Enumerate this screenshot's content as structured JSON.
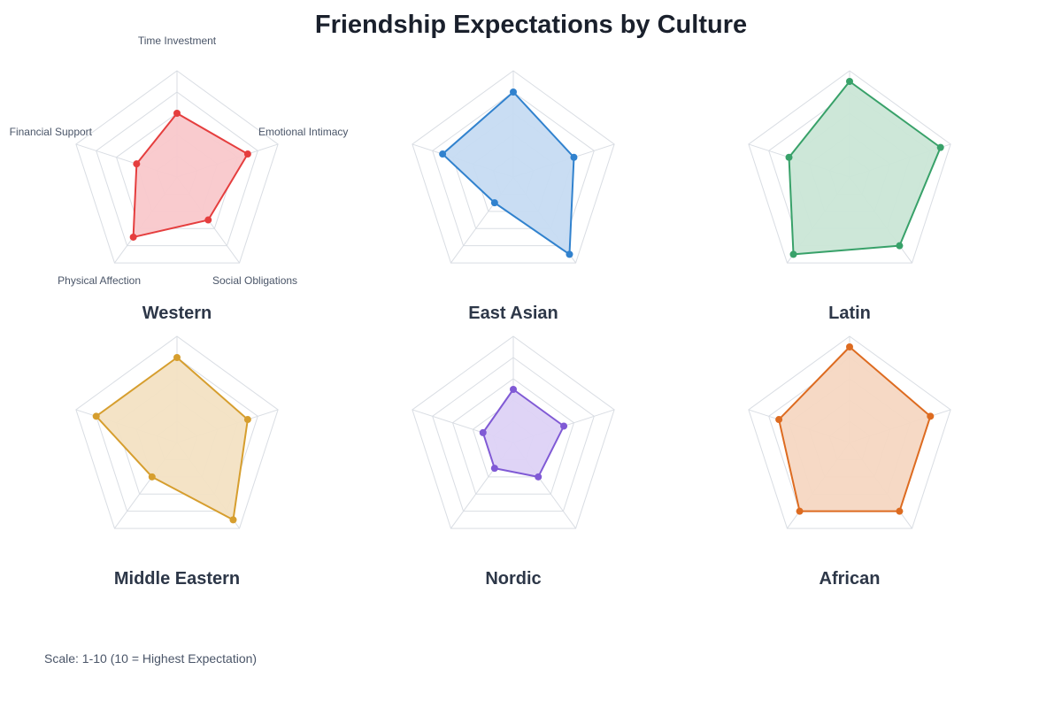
{
  "title": "Friendship Expectations by Culture",
  "footnote": "Scale: 1-10 (10 = Highest Expectation)",
  "chart_data": {
    "type": "radar",
    "title": "Friendship Expectations by Culture",
    "axes": [
      "Time Investment",
      "Emotional Intimacy",
      "Social Obligations",
      "Physical Affection",
      "Financial Support"
    ],
    "range": [
      0,
      10
    ],
    "grid_levels": 5,
    "grid": true,
    "series": [
      {
        "name": "Western",
        "values": [
          6,
          7,
          5,
          7,
          4
        ],
        "color": "#e53e3e",
        "fill": "#f9c8cb"
      },
      {
        "name": "East Asian",
        "values": [
          8,
          6,
          9,
          3,
          7
        ],
        "color": "#3182ce",
        "fill": "#c6dbf2"
      },
      {
        "name": "Latin",
        "values": [
          9,
          9,
          8,
          9,
          6
        ],
        "color": "#38a169",
        "fill": "#cae6d6"
      },
      {
        "name": "Middle Eastern",
        "values": [
          8,
          7,
          9,
          4,
          8
        ],
        "color": "#d69e2e",
        "fill": "#f3e2c3"
      },
      {
        "name": "Nordic",
        "values": [
          5,
          5,
          4,
          3,
          3
        ],
        "color": "#805ad5",
        "fill": "#ddd2f6"
      },
      {
        "name": "African",
        "values": [
          9,
          8,
          8,
          8,
          7
        ],
        "color": "#dd6b20",
        "fill": "#f6d7c2"
      }
    ]
  }
}
